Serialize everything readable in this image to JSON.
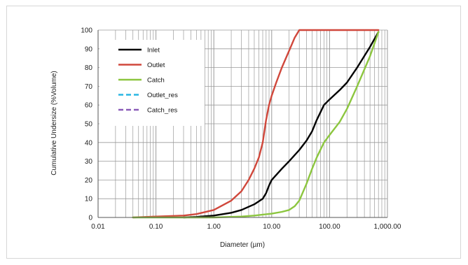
{
  "chart_data": {
    "type": "line",
    "xscale": "log",
    "xlabel": "Diameter (µm)",
    "ylabel": "Cumulative Undersize (%Volume)",
    "xlim": [
      0.01,
      1000
    ],
    "ylim": [
      0,
      100
    ],
    "x_tick_labels": [
      "0.01",
      "0.10",
      "1.00",
      "10.00",
      "100.00",
      "1,000.00"
    ],
    "y_tick_labels": [
      "0",
      "10",
      "20",
      "30",
      "40",
      "50",
      "60",
      "70",
      "80",
      "90",
      "100"
    ],
    "grid": true,
    "legend_placement": "top-left",
    "series": [
      {
        "name": "Inlet",
        "color": "#000000",
        "dash": "solid",
        "x": [
          0.3,
          0.5,
          1,
          2,
          3,
          5,
          7,
          8,
          9,
          10,
          15,
          20,
          30,
          40,
          50,
          60,
          80,
          100,
          150,
          200,
          300,
          500,
          700
        ],
        "y": [
          0,
          0.3,
          1,
          2.5,
          4,
          7,
          10,
          13,
          17,
          20,
          26,
          30,
          36,
          41,
          46,
          52,
          60,
          63,
          68,
          72,
          80,
          91,
          99
        ]
      },
      {
        "name": "Outlet",
        "color": "#d0473b",
        "dash": "solid",
        "x": [
          0.04,
          0.1,
          0.3,
          0.5,
          1,
          2,
          3,
          4,
          5,
          6,
          7,
          8,
          9,
          10,
          12,
          15,
          20,
          25,
          30,
          100,
          700
        ],
        "y": [
          0,
          0.5,
          1,
          1.8,
          4,
          9,
          14,
          20,
          26,
          32,
          40,
          52,
          60,
          65,
          72,
          80,
          89,
          96,
          100,
          100,
          100
        ]
      },
      {
        "name": "Catch",
        "color": "#8cc63f",
        "dash": "solid",
        "x": [
          0.04,
          0.1,
          1,
          3,
          5,
          10,
          15,
          20,
          25,
          30,
          40,
          50,
          60,
          80,
          100,
          150,
          200,
          300,
          500,
          700
        ],
        "y": [
          0,
          0,
          0,
          0.5,
          1,
          2,
          3,
          4,
          6,
          9,
          18,
          26,
          32,
          40,
          44,
          51,
          58,
          70,
          86,
          99
        ]
      },
      {
        "name": "Outlet_res",
        "color": "#29b6e3",
        "dash": "dashed",
        "x": [],
        "y": []
      },
      {
        "name": "Catch_res",
        "color": "#8a5bb8",
        "dash": "dashed",
        "x": [],
        "y": []
      }
    ]
  }
}
